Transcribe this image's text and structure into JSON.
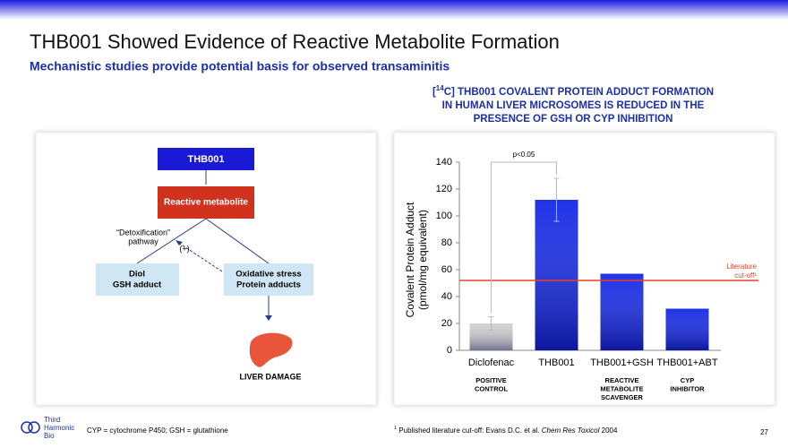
{
  "slide": {
    "title": "THB001 Showed Evidence of Reactive Metabolite Formation",
    "subtitle": "Mechanistic studies provide potential basis for observed transaminitis",
    "abbreviations": "CYP = cytochrome P450; GSH = glutathione",
    "footnote": [
      "1",
      " Published literature cut-off: Evans D.C. et al. ",
      "Chem Res Toxicol",
      " 2004"
    ],
    "logo": [
      "Third",
      "Harmonic",
      "Bio"
    ],
    "page_number": "27"
  },
  "diagram": {
    "nodes": [
      {
        "label": [
          "THB001"
        ]
      },
      {
        "label": [
          "Reactive metabolite"
        ]
      },
      {
        "label": [
          "Diol",
          "GSH adduct"
        ]
      },
      {
        "label": [
          "Oxidative stress",
          "Protein adducts"
        ]
      },
      {
        "label": [
          "LIVER DAMAGE"
        ]
      }
    ],
    "edge_labels": [
      [
        "“Detoxification”",
        "pathway"
      ],
      [
        "(+)"
      ]
    ]
  },
  "chart_data": {
    "type": "bar",
    "title": [
      "[",
      "14",
      "C] THB001 COVALENT PROTEIN ADDUCT FORMATION",
      "IN HUMAN LIVER MICROSOMES IS REDUCED IN THE",
      "PRESENCE OF GSH OR CYP INHIBITION"
    ],
    "y_label": [
      "Covalent Protein Adduct",
      "(pmol/mg equivalent)"
    ],
    "categories": [
      "Diclofenac",
      "THB001",
      "THB001+GSH",
      "THB001+ABT"
    ],
    "sublabels": [
      [
        "POSITIVE",
        "CONTROL"
      ],
      null,
      [
        "REACTIVE",
        "METABOLITE",
        "SCAVENGER"
      ],
      [
        "CYP",
        "INHIBITOR"
      ]
    ],
    "values": [
      20,
      112,
      57,
      31
    ],
    "errors": [
      5,
      16,
      null,
      null
    ],
    "colors": [
      "#cfcfcf",
      "#1428e6",
      "#1428e6",
      "#1428e6"
    ],
    "ylim": [
      0,
      140
    ],
    "yticks": [
      0,
      20,
      40,
      60,
      80,
      100,
      120,
      140
    ],
    "reference_line": {
      "value": 52,
      "label": [
        "Literature",
        "cut-off¹"
      ],
      "color": "#e8402a"
    },
    "annotation": "p<0.05"
  }
}
